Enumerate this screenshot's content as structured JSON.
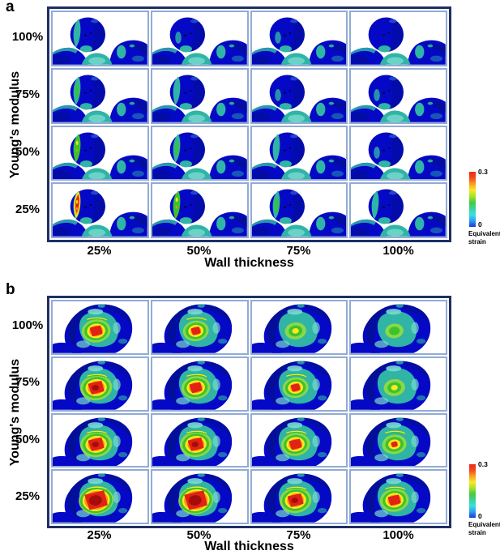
{
  "figure": {
    "palette": {
      "body_blue": "#0509c6",
      "shadow_navy": "#021278",
      "deep_navy": "#000a52",
      "teal": "#2fb4a6",
      "cyan_light": "#79d9cf",
      "green": "#3cc32c",
      "green_light": "#9ade3a",
      "yellow": "#ffe81e",
      "orange": "#ff9414",
      "red": "#e02313",
      "red_dark": "#a50c0c",
      "grid_outer_border": "#1e2f63",
      "cell_border": "#92abd4"
    },
    "colorbar": {
      "max_label": "0.3",
      "min_label": "0",
      "title_lines": [
        "Equivalent",
        "strain"
      ],
      "gradient_bottom_to_top": [
        "#1a35e0",
        "#2b9ff0",
        "#3ae0df",
        "#3ecf9a",
        "#44cb3a",
        "#a9e02c",
        "#f7ea24",
        "#f9a01b",
        "#f2491f",
        "#ee2a10"
      ]
    },
    "panels": [
      {
        "label": "a",
        "view": "outer-wall",
        "y_axis_label": "Young's modulus",
        "x_axis_label": "Wall thickness",
        "row_labels": [
          "100%",
          "75%",
          "50%",
          "25%"
        ],
        "col_labels": [
          "25%",
          "50%",
          "75%",
          "100%"
        ],
        "cells": [
          [
            2,
            1,
            1,
            0
          ],
          [
            3,
            2,
            1,
            1
          ],
          [
            5,
            3,
            2,
            1
          ],
          [
            8,
            5,
            3,
            2
          ]
        ]
      },
      {
        "label": "b",
        "view": "dome-top",
        "y_axis_label": "Young's modulus",
        "x_axis_label": "Wall thickness",
        "row_labels": [
          "100%",
          "75%",
          "50%",
          "25%"
        ],
        "col_labels": [
          "25%",
          "50%",
          "75%",
          "100%"
        ],
        "cells": [
          [
            7,
            6,
            4,
            3
          ],
          [
            8,
            7,
            6,
            4
          ],
          [
            8,
            8,
            7,
            5
          ],
          [
            10,
            10,
            8,
            7
          ]
        ]
      }
    ],
    "cells_note": "cell values are qualitative equivalent-strain hotspot levels (0 = all blue, 10 = largest red region)"
  }
}
